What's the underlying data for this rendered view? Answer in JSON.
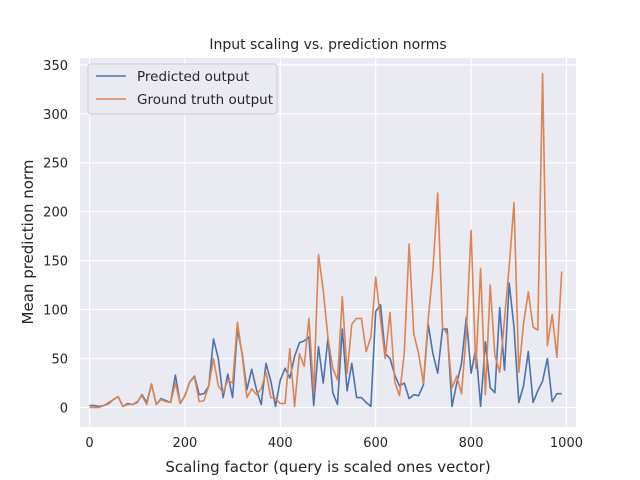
{
  "chart_data": {
    "type": "line",
    "title": "Input scaling vs. prediction norms",
    "xlabel": "Scaling factor (query is scaled ones vector)",
    "ylabel": "Mean prediction norm",
    "xlim": [
      -20,
      1020
    ],
    "ylim": [
      -20,
      357
    ],
    "xticks": [
      0,
      200,
      400,
      600,
      800,
      1000
    ],
    "yticks": [
      0,
      50,
      100,
      150,
      200,
      250,
      300,
      350
    ],
    "grid": true,
    "legend_position": "top-left",
    "x": [
      0,
      10,
      20,
      30,
      40,
      50,
      60,
      70,
      80,
      90,
      100,
      110,
      120,
      130,
      140,
      150,
      160,
      170,
      180,
      190,
      200,
      210,
      220,
      230,
      240,
      250,
      260,
      270,
      280,
      290,
      300,
      310,
      320,
      330,
      340,
      350,
      360,
      370,
      380,
      390,
      400,
      410,
      420,
      430,
      440,
      450,
      460,
      470,
      480,
      490,
      500,
      510,
      520,
      530,
      540,
      550,
      560,
      570,
      580,
      590,
      600,
      610,
      620,
      630,
      640,
      650,
      660,
      670,
      680,
      690,
      700,
      710,
      720,
      730,
      740,
      750,
      760,
      770,
      780,
      790,
      800,
      810,
      820,
      830,
      840,
      850,
      860,
      870,
      880,
      890,
      900,
      910,
      920,
      930,
      940,
      950,
      960,
      970,
      980,
      990
    ],
    "series": [
      {
        "name": "Predicted output",
        "color": "#4c72b0",
        "values": [
          2,
          2,
          1,
          2,
          4,
          8,
          11,
          1,
          4,
          3,
          5,
          13,
          5,
          24,
          3,
          9,
          7,
          5,
          33,
          4,
          12,
          26,
          32,
          13,
          14,
          22,
          70,
          50,
          10,
          34,
          10,
          80,
          55,
          18,
          39,
          18,
          3,
          45,
          27,
          1,
          28,
          40,
          30,
          52,
          66,
          68,
          72,
          2,
          62,
          25,
          71,
          15,
          3,
          80,
          17,
          45,
          10,
          10,
          5,
          1,
          98,
          105,
          55,
          50,
          33,
          22,
          25,
          9,
          13,
          12,
          23,
          85,
          55,
          35,
          80,
          80,
          1,
          25,
          45,
          92,
          35,
          60,
          1,
          67,
          20,
          15,
          102,
          38,
          127,
          82,
          5,
          22,
          57,
          5,
          17,
          27,
          50,
          6,
          14,
          14
        ]
      },
      {
        "name": "Ground truth output",
        "color": "#dd8452",
        "values": [
          0,
          0,
          0,
          2,
          5,
          8,
          11,
          1,
          3,
          3,
          6,
          12,
          3,
          24,
          3,
          8,
          6,
          5,
          25,
          4,
          12,
          26,
          31,
          6,
          7,
          22,
          50,
          22,
          15,
          28,
          25,
          87,
          53,
          10,
          19,
          13,
          19,
          36,
          10,
          9,
          4,
          4,
          60,
          1,
          55,
          42,
          91,
          15,
          156,
          120,
          71,
          40,
          28,
          113,
          35,
          85,
          91,
          91,
          57,
          72,
          133,
          90,
          50,
          97,
          26,
          12,
          56,
          167,
          75,
          55,
          25,
          90,
          140,
          219,
          82,
          75,
          20,
          32,
          14,
          75,
          181,
          40,
          142,
          13,
          125,
          53,
          36,
          90,
          144,
          209,
          36,
          85,
          118,
          82,
          79,
          341,
          63,
          95,
          51,
          139
        ]
      }
    ]
  }
}
